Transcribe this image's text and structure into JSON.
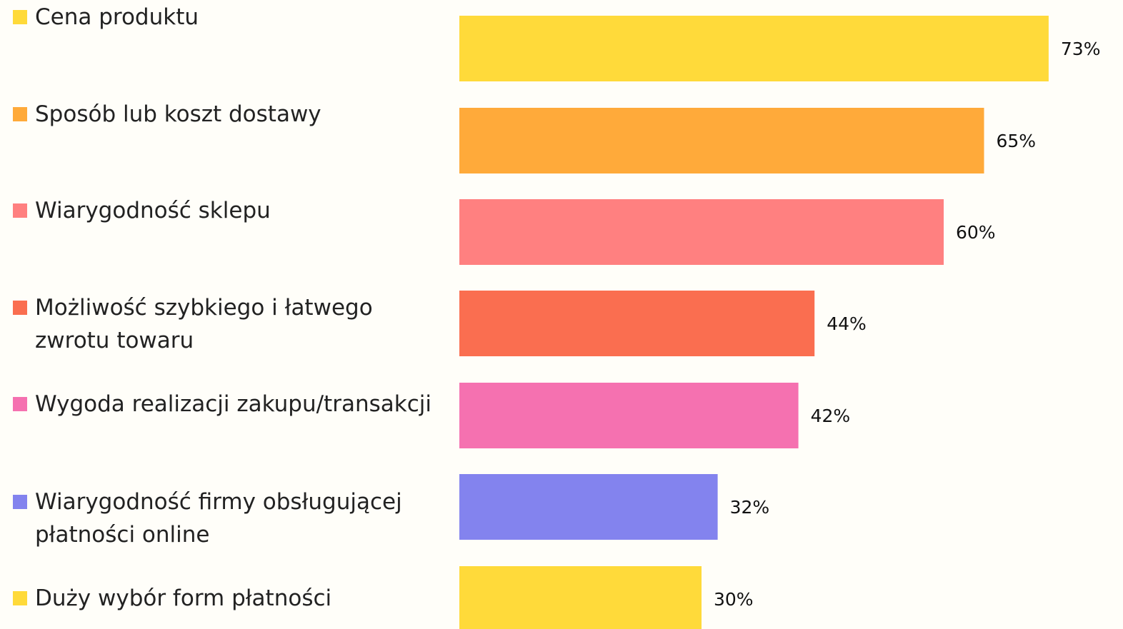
{
  "chart_data": {
    "type": "bar",
    "orientation": "horizontal",
    "categories": [
      "Cena produktu",
      "Sposób lub koszt dostawy",
      "Wiarygodność sklepu",
      "Możliwość  szybkiego i łatwego\nzwrotu towaru",
      "Wygoda realizacji zakupu/transakcji",
      "Wiarygodność firmy obsługującej\npłatności online",
      "Duży wybór form płatności"
    ],
    "values": [
      73,
      65,
      60,
      44,
      42,
      32,
      30
    ],
    "value_labels": [
      "73%",
      "65%",
      "60%",
      "44%",
      "42%",
      "32%",
      "30%"
    ],
    "colors": [
      "#ffda3a",
      "#ffaa3a",
      "#ff8080",
      "#fa6e50",
      "#f571b0",
      "#8383ee",
      "#ffda3a"
    ]
  }
}
